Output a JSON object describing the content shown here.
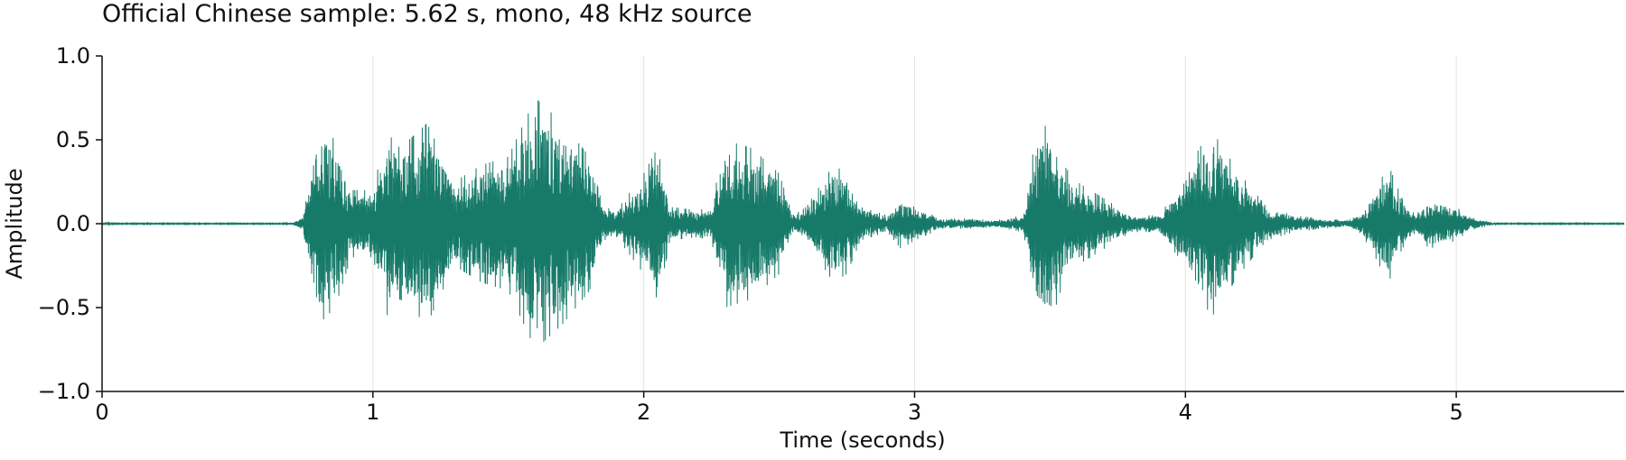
{
  "chart_data": {
    "type": "line",
    "title": "Official Chinese sample: 5.62 s, mono, 48 kHz source",
    "xlabel": "Time (seconds)",
    "ylabel": "Amplitude",
    "xlim": [
      0,
      5.62
    ],
    "ylim": [
      -1.0,
      1.0
    ],
    "xticks": [
      0,
      1,
      2,
      3,
      4,
      5
    ],
    "xtick_labels": [
      "0",
      "1",
      "2",
      "3",
      "4",
      "5"
    ],
    "yticks": [
      1.0,
      0.5,
      0.0,
      -0.5,
      -1.0
    ],
    "ytick_labels": [
      "1.0",
      "0.5",
      "0.0",
      "−0.5",
      "−1.0"
    ],
    "grid": "vertical",
    "legend": "none",
    "color": "#177a69",
    "series": [
      {
        "envelope_t": [
          0.0,
          0.02,
          0.05,
          0.1,
          0.7,
          0.74,
          0.8,
          0.86,
          0.92,
          1.0,
          1.05,
          1.1,
          1.2,
          1.3,
          1.4,
          1.5,
          1.6,
          1.7,
          1.8,
          1.85,
          1.9,
          2.0,
          2.05,
          2.1,
          2.2,
          2.25,
          2.3,
          2.4,
          2.5,
          2.55,
          2.6,
          2.7,
          2.75,
          2.8,
          2.9,
          2.95,
          3.0,
          3.1,
          3.2,
          3.3,
          3.4,
          3.45,
          3.5,
          3.55,
          3.6,
          3.7,
          3.8,
          3.9,
          4.0,
          4.05,
          4.1,
          4.2,
          4.25,
          4.3,
          4.4,
          4.5,
          4.6,
          4.65,
          4.7,
          4.75,
          4.8,
          4.85,
          4.9,
          5.0,
          5.05,
          5.1,
          5.15,
          5.62
        ],
        "envelope_amp": [
          0.005,
          0.005,
          0.003,
          0.003,
          0.003,
          0.04,
          0.6,
          0.5,
          0.2,
          0.2,
          0.55,
          0.45,
          0.6,
          0.25,
          0.35,
          0.4,
          0.75,
          0.6,
          0.4,
          0.1,
          0.08,
          0.3,
          0.45,
          0.1,
          0.08,
          0.1,
          0.5,
          0.45,
          0.3,
          0.05,
          0.1,
          0.35,
          0.3,
          0.1,
          0.05,
          0.15,
          0.1,
          0.03,
          0.03,
          0.02,
          0.05,
          0.55,
          0.6,
          0.35,
          0.25,
          0.15,
          0.05,
          0.05,
          0.25,
          0.45,
          0.55,
          0.3,
          0.2,
          0.1,
          0.05,
          0.03,
          0.02,
          0.06,
          0.2,
          0.35,
          0.15,
          0.05,
          0.15,
          0.1,
          0.04,
          0.02,
          0.003,
          0.003
        ]
      }
    ]
  }
}
